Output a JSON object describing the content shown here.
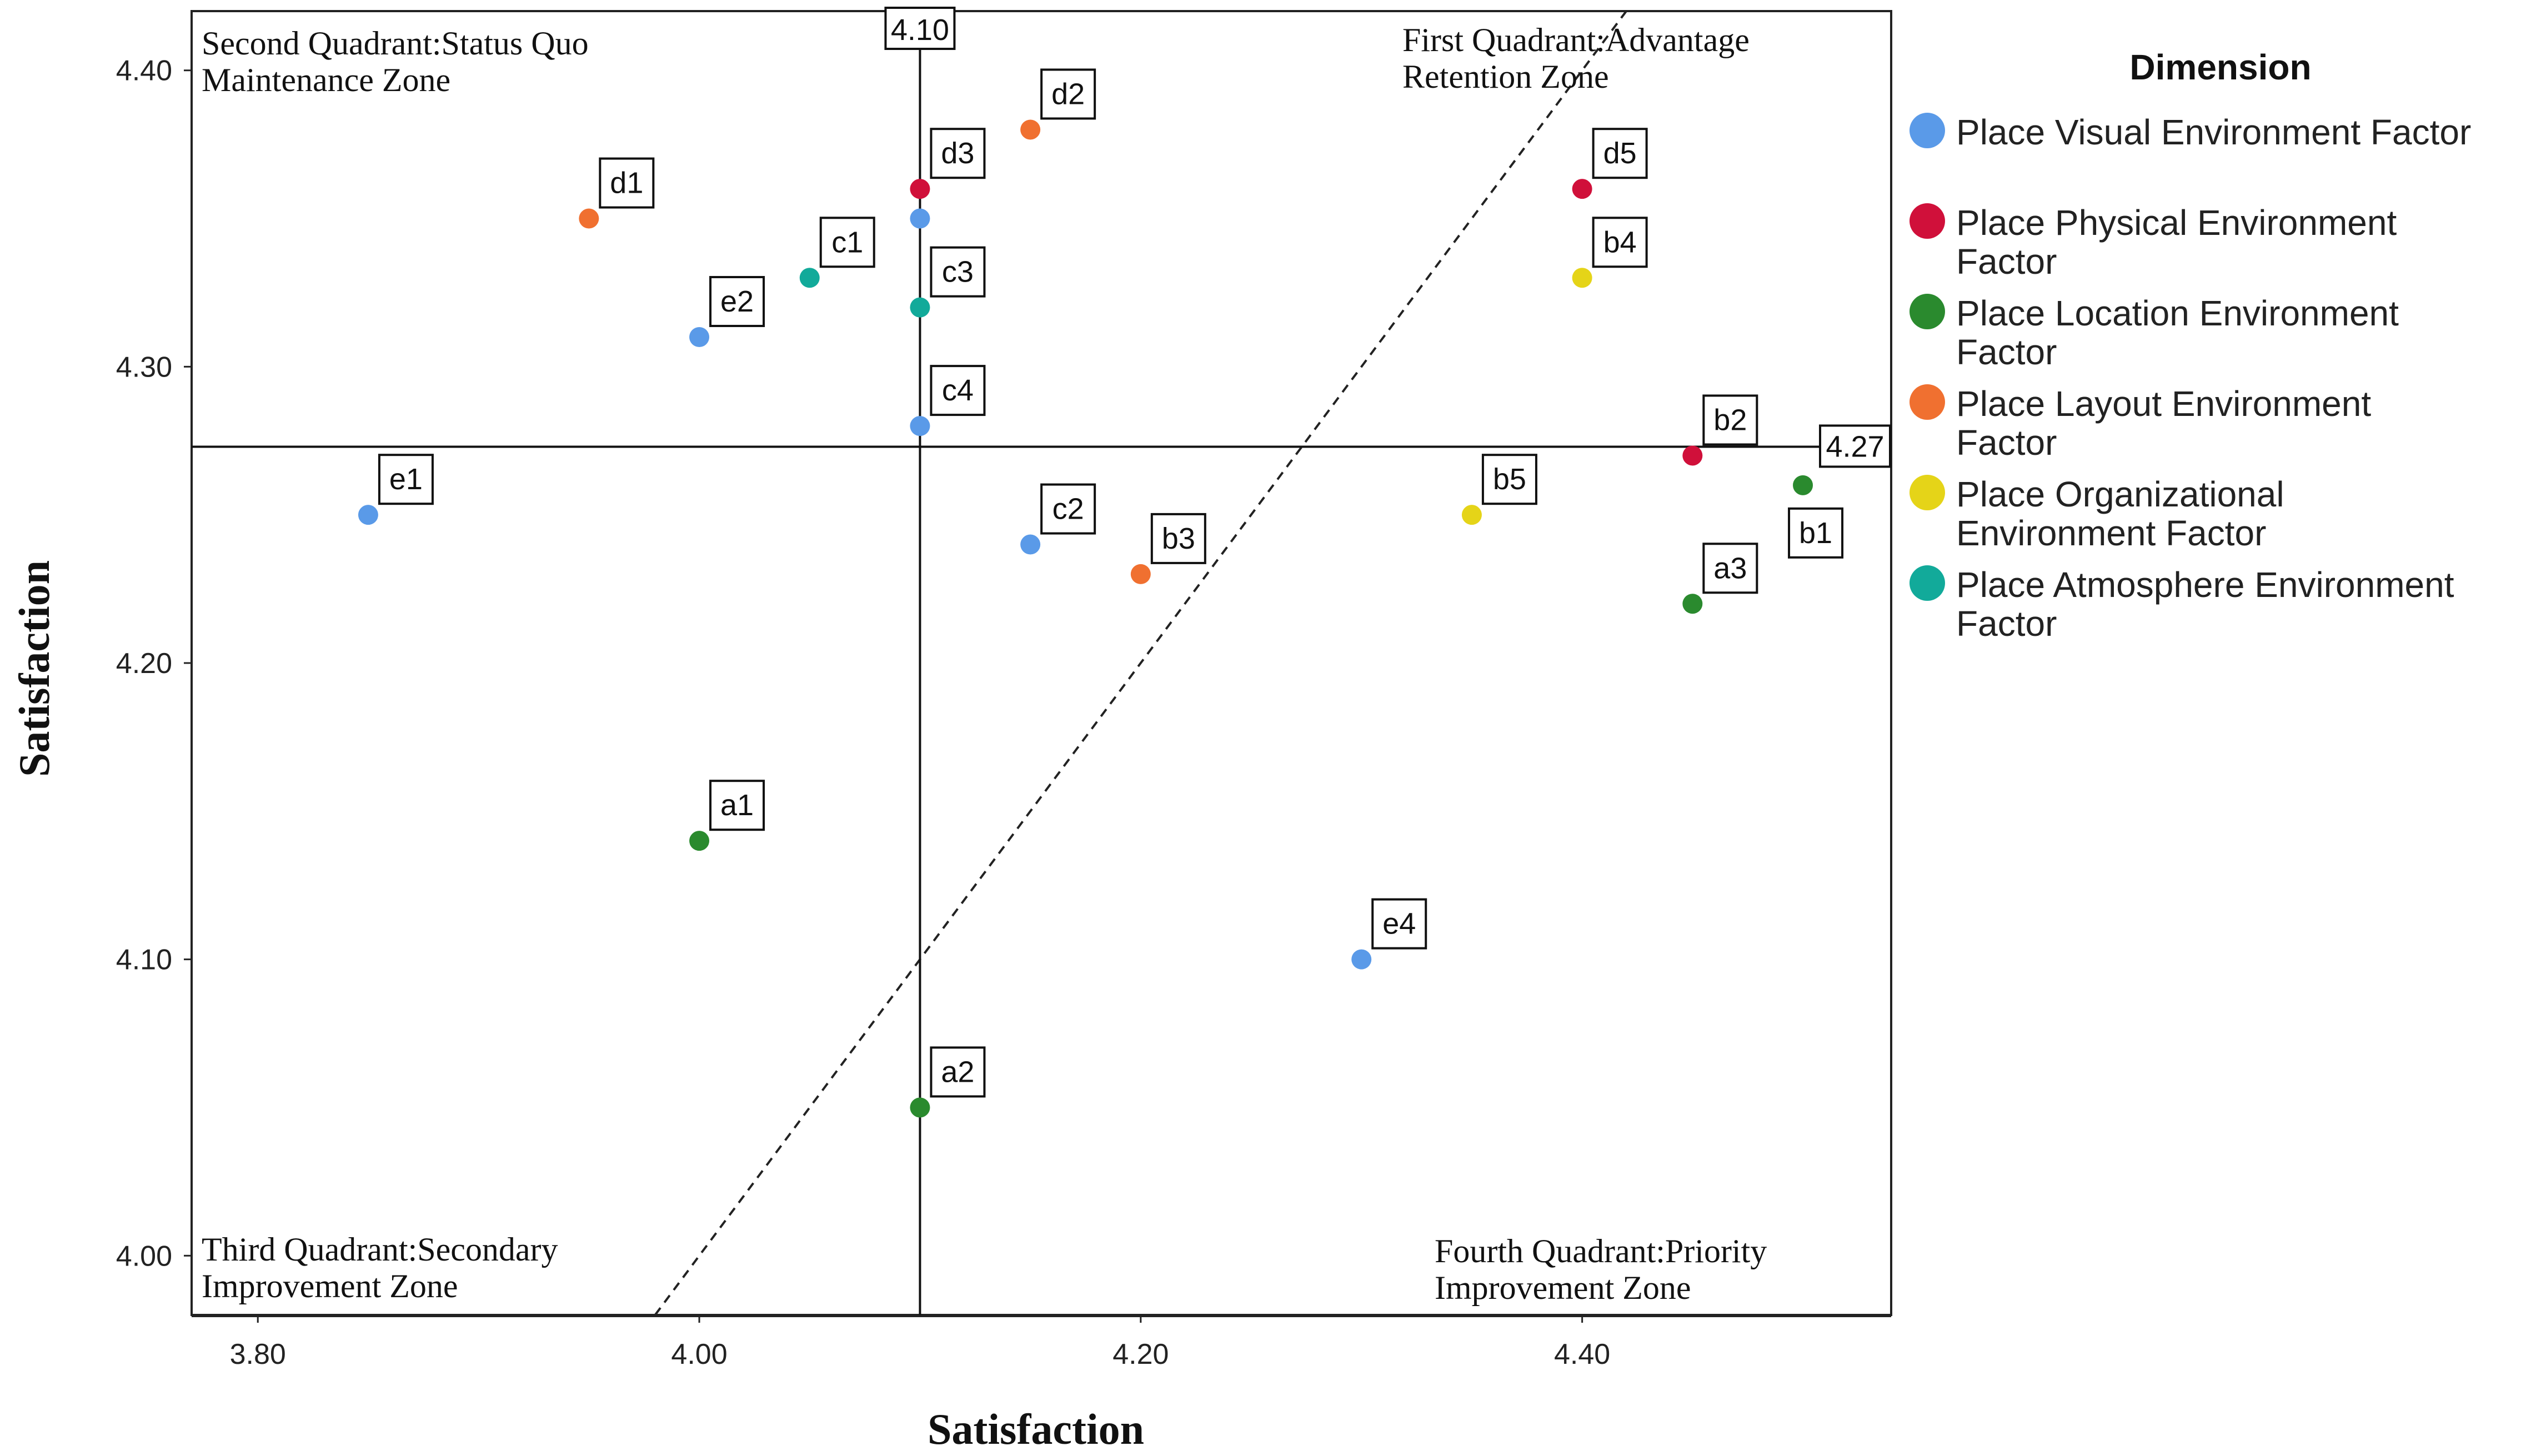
{
  "chart_data": {
    "type": "scatter",
    "xlabel": "Satisfaction",
    "ylabel": "Satisfaction",
    "xlim": [
      3.77,
      4.54
    ],
    "ylim": [
      3.98,
      4.42
    ],
    "x_ticks": [
      "3.80",
      "4.00",
      "4.20",
      "4.40"
    ],
    "x_tick_values": [
      3.8,
      4.0,
      4.2,
      4.4
    ],
    "y_ticks": [
      "4.00",
      "4.10",
      "4.20",
      "4.30",
      "4.40"
    ],
    "y_tick_values": [
      4.0,
      4.1,
      4.2,
      4.3,
      4.4
    ],
    "reference_lines": {
      "vertical": {
        "value": 4.1,
        "label": "4.10"
      },
      "horizontal": {
        "value": 4.273,
        "label": "4.27"
      },
      "diagonal": "dashed y = x"
    },
    "quadrants": {
      "top_left": [
        "Second Quadrant:Status Quo",
        "Maintenance Zone"
      ],
      "top_right": [
        "First Quadrant:Advantage",
        "Retention Zone"
      ],
      "bottom_left": [
        "Third Quadrant:Secondary",
        "Improvement Zone"
      ],
      "bottom_right": [
        "Fourth Quadrant:Priority",
        "Improvement Zone"
      ]
    },
    "legend": {
      "title": "Dimension",
      "entries": [
        {
          "key": "visual",
          "label": [
            "Place Visual Environment Factor"
          ],
          "color": "#5a9ae8"
        },
        {
          "key": "physical",
          "label": [
            "Place Physical Environment",
            "Factor"
          ],
          "color": "#d0103a"
        },
        {
          "key": "location",
          "label": [
            "Place Location Environment",
            "Factor"
          ],
          "color": "#2a8a2e"
        },
        {
          "key": "layout",
          "label": [
            "Place Layout Environment",
            "Factor"
          ],
          "color": "#f07030"
        },
        {
          "key": "organizational",
          "label": [
            "Place Organizational",
            "Environment Factor"
          ],
          "color": "#e5d418"
        },
        {
          "key": "atmosphere",
          "label": [
            "Place Atmosphere Environment",
            "Factor"
          ],
          "color": "#12aa9a"
        }
      ]
    },
    "points": [
      {
        "label": "a1",
        "x": 4.0,
        "y": 4.14,
        "group": "location"
      },
      {
        "label": "a2",
        "x": 4.1,
        "y": 4.05,
        "group": "location"
      },
      {
        "label": "a3",
        "x": 4.45,
        "y": 4.22,
        "group": "location"
      },
      {
        "label": "b1",
        "x": 4.5,
        "y": 4.26,
        "group": "location"
      },
      {
        "label": "b2",
        "x": 4.45,
        "y": 4.27,
        "group": "physical"
      },
      {
        "label": "b3",
        "x": 4.2,
        "y": 4.23,
        "group": "layout"
      },
      {
        "label": "b4",
        "x": 4.4,
        "y": 4.33,
        "group": "organizational"
      },
      {
        "label": "b5",
        "x": 4.35,
        "y": 4.25,
        "group": "organizational"
      },
      {
        "label": "c1",
        "x": 4.05,
        "y": 4.33,
        "group": "atmosphere"
      },
      {
        "label": "c2",
        "x": 4.15,
        "y": 4.24,
        "group": "visual"
      },
      {
        "label": "c3",
        "x": 4.1,
        "y": 4.32,
        "group": "atmosphere"
      },
      {
        "label": "c4",
        "x": 4.1,
        "y": 4.28,
        "group": "visual"
      },
      {
        "label": "d1",
        "x": 3.95,
        "y": 4.35,
        "group": "layout"
      },
      {
        "label": "d2",
        "x": 4.15,
        "y": 4.38,
        "group": "layout"
      },
      {
        "label": "d3",
        "x": 4.1,
        "y": 4.36,
        "group": "physical"
      },
      {
        "label": "d5",
        "x": 4.4,
        "y": 4.36,
        "group": "physical"
      },
      {
        "label": "",
        "x": 4.1,
        "y": 4.35,
        "group": "visual"
      },
      {
        "label": "e1",
        "x": 3.85,
        "y": 4.25,
        "group": "visual"
      },
      {
        "label": "e2",
        "x": 4.0,
        "y": 4.31,
        "group": "visual"
      },
      {
        "label": "e4",
        "x": 4.3,
        "y": 4.1,
        "group": "visual"
      }
    ]
  }
}
